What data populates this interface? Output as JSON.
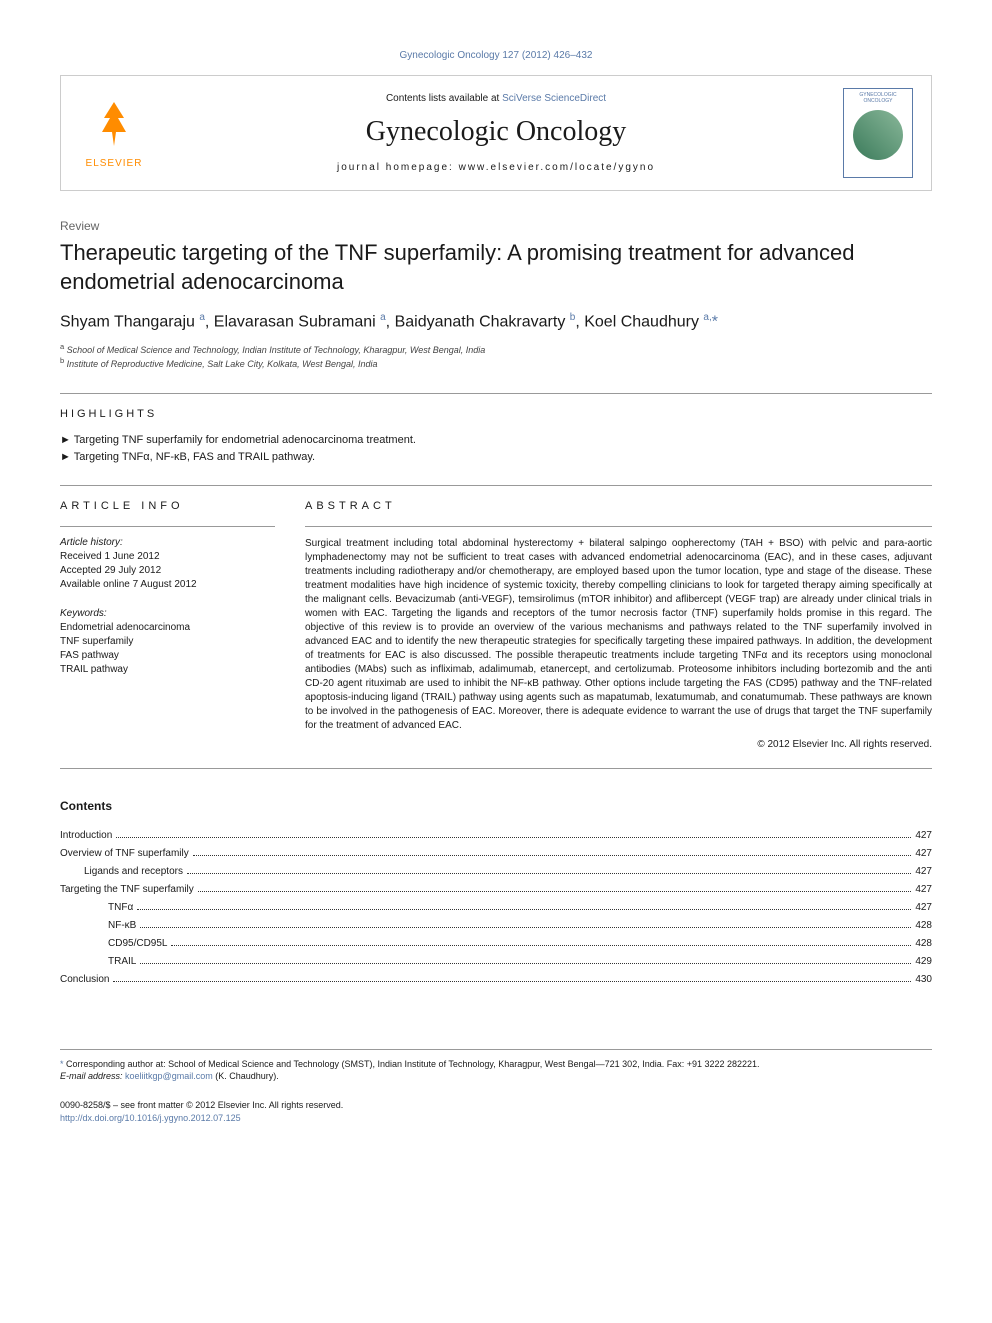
{
  "journal_ref": {
    "text": "Gynecologic Oncology 127 (2012) 426–432",
    "color": "#5a7aa8"
  },
  "header": {
    "elsevier": "ELSEVIER",
    "scidirect_prefix": "Contents lists available at ",
    "scidirect_link": "SciVerse ScienceDirect",
    "journal_name": "Gynecologic Oncology",
    "homepage_prefix": "journal homepage: ",
    "homepage": "www.elsevier.com/locate/ygyno",
    "cover_title": "GYNECOLOGIC ONCOLOGY"
  },
  "article": {
    "type": "Review",
    "title": "Therapeutic targeting of the TNF superfamily: A promising treatment for advanced endometrial adenocarcinoma",
    "authors_html": "Shyam Thangaraju <sup>a</sup>, Elavarasan Subramani <sup>a</sup>, Baidyanath Chakravarty <sup>b</sup>, Koel Chaudhury <sup>a,</sup><span class='star'>*</span>",
    "affiliations": [
      "a School of Medical Science and Technology, Indian Institute of Technology, Kharagpur, West Bengal, India",
      "b Institute of Reproductive Medicine, Salt Lake City, Kolkata, West Bengal, India"
    ]
  },
  "highlights": {
    "label": "HIGHLIGHTS",
    "items": [
      "Targeting TNF superfamily for endometrial adenocarcinoma treatment.",
      "Targeting TNFα, NF-κB, FAS and TRAIL pathway."
    ]
  },
  "article_info": {
    "label": "ARTICLE INFO",
    "history_label": "Article history:",
    "history": [
      "Received 1 June 2012",
      "Accepted 29 July 2012",
      "Available online 7 August 2012"
    ],
    "keywords_label": "Keywords:",
    "keywords": [
      "Endometrial adenocarcinoma",
      "TNF superfamily",
      "FAS pathway",
      "TRAIL pathway"
    ]
  },
  "abstract": {
    "label": "ABSTRACT",
    "text": "Surgical treatment including total abdominal hysterectomy + bilateral salpingo oopherectomy (TAH + BSO) with pelvic and para-aortic lymphadenectomy may not be sufficient to treat cases with advanced endometrial adenocarcinoma (EAC), and in these cases, adjuvant treatments including radiotherapy and/or chemotherapy, are employed based upon the tumor location, type and stage of the disease. These treatment modalities have high incidence of systemic toxicity, thereby compelling clinicians to look for targeted therapy aiming specifically at the malignant cells. Bevacizumab (anti-VEGF), temsirolimus (mTOR inhibitor) and aflibercept (VEGF trap) are already under clinical trials in women with EAC. Targeting the ligands and receptors of the tumor necrosis factor (TNF) superfamily holds promise in this regard. The objective of this review is to provide an overview of the various mechanisms and pathways related to the TNF superfamily involved in advanced EAC and to identify the new therapeutic strategies for specifically targeting these impaired pathways. In addition, the development of treatments for EAC is also discussed. The possible therapeutic treatments include targeting TNFα and its receptors using monoclonal antibodies (MAbs) such as infliximab, adalimumab, etanercept, and certolizumab. Proteosome inhibitors including bortezomib and the anti CD-20 agent rituximab are used to inhibit the NF-κB pathway. Other options include targeting the FAS (CD95) pathway and the TNF-related apoptosis-inducing ligand (TRAIL) pathway using agents such as mapatumab, lexatumumab, and conatumumab. These pathways are known to be involved in the pathogenesis of EAC. Moreover, there is adequate evidence to warrant the use of drugs that target the TNF superfamily for the treatment of advanced EAC.",
    "copyright": "© 2012 Elsevier Inc. All rights reserved."
  },
  "contents": {
    "label": "Contents",
    "items": [
      {
        "label": "Introduction",
        "page": "427",
        "indent": 0
      },
      {
        "label": "Overview of TNF superfamily",
        "page": "427",
        "indent": 0
      },
      {
        "label": "Ligands and receptors",
        "page": "427",
        "indent": 1
      },
      {
        "label": "Targeting the TNF superfamily",
        "page": "427",
        "indent": 0
      },
      {
        "label": "TNFα",
        "page": "427",
        "indent": 2
      },
      {
        "label": "NF-κB",
        "page": "428",
        "indent": 2
      },
      {
        "label": "CD95/CD95L",
        "page": "428",
        "indent": 2
      },
      {
        "label": "TRAIL",
        "page": "429",
        "indent": 2
      },
      {
        "label": "Conclusion",
        "page": "430",
        "indent": 0
      }
    ]
  },
  "footnote": {
    "star": "*",
    "text": " Corresponding author at: School of Medical Science and Technology (SMST), Indian Institute of Technology, Kharagpur, West Bengal—721 302, India. Fax: +91 3222 282221.",
    "email_label": "E-mail address: ",
    "email": "koeliitkgp@gmail.com",
    "email_suffix": " (K. Chaudhury)."
  },
  "bottom": {
    "issn": "0090-8258/$ – see front matter © 2012 Elsevier Inc. All rights reserved.",
    "doi": "http://dx.doi.org/10.1016/j.ygyno.2012.07.125"
  },
  "colors": {
    "link": "#5a7aa8",
    "elsevier": "#ff8c00",
    "text": "#1a1a1a",
    "rule": "#999999"
  },
  "typography": {
    "title_fontsize": 22,
    "authors_fontsize": 16,
    "body_fontsize": 10,
    "journal_name_fontsize": 28
  }
}
